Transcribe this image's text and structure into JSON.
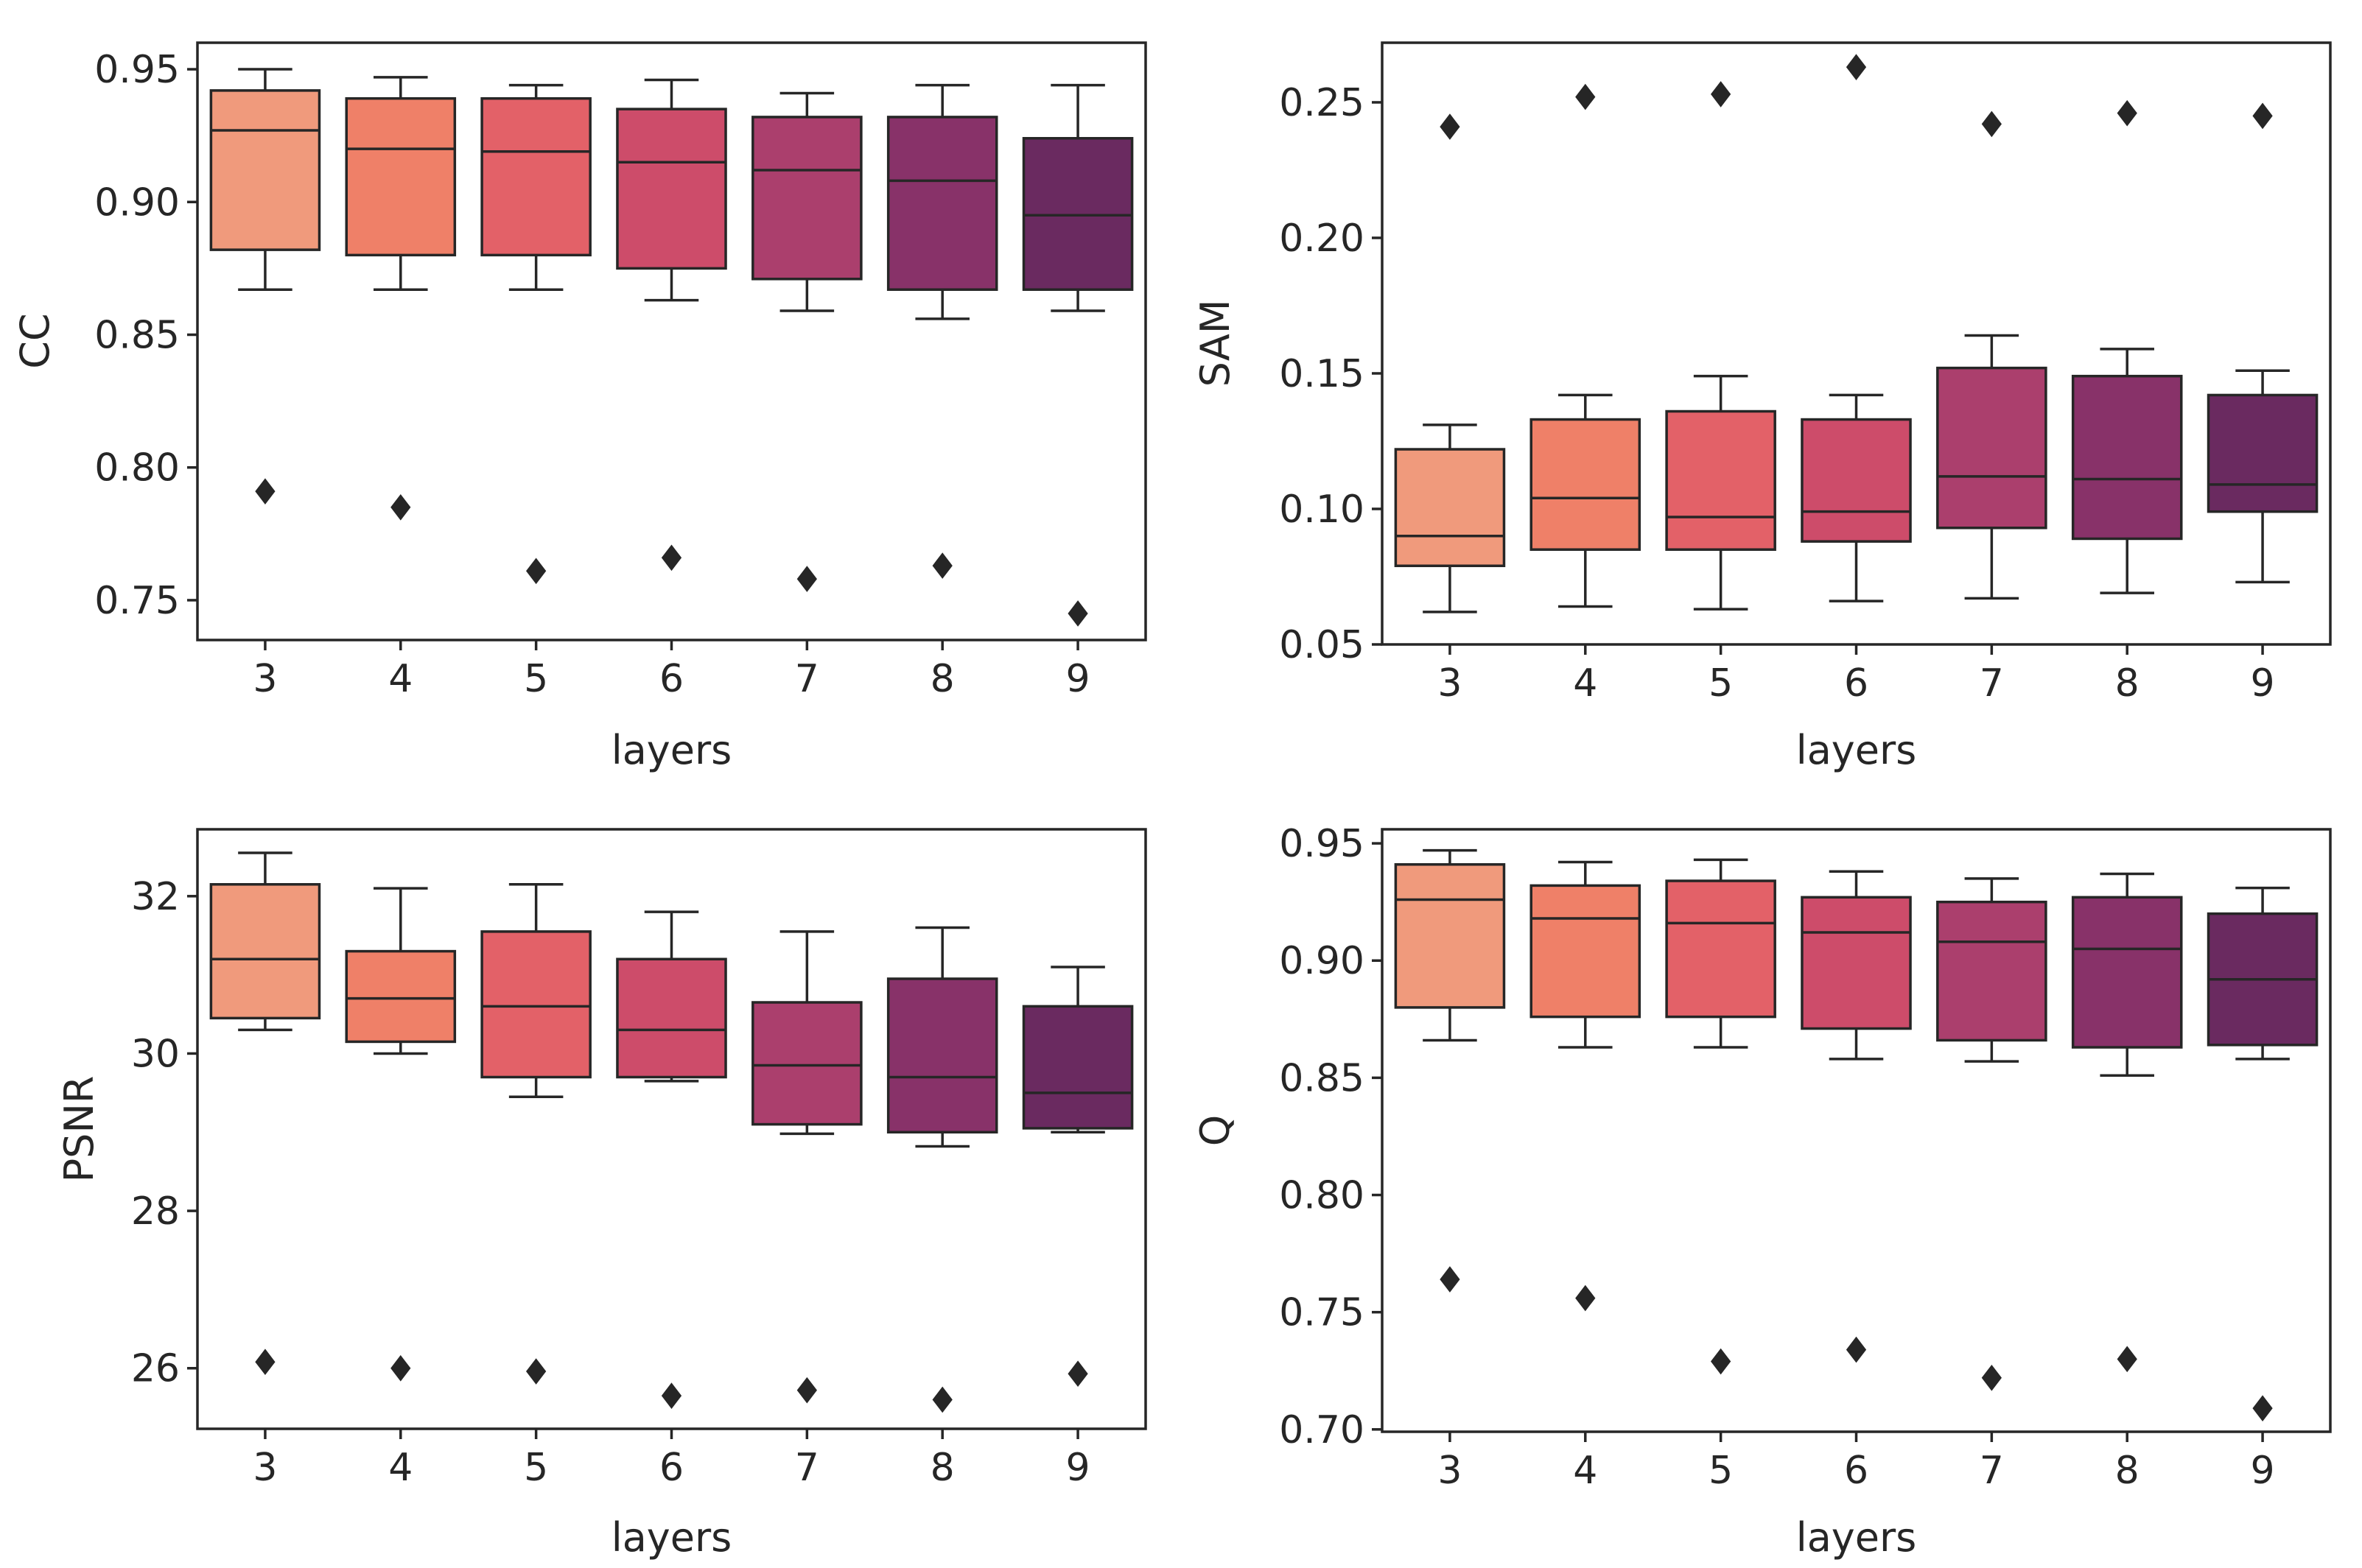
{
  "figure": {
    "colors": [
      "#f09a7c",
      "#ef8068",
      "#e36168",
      "#cd4c6a",
      "#ab3f6d",
      "#883269",
      "#6a2a60"
    ],
    "edge_color": "#262626"
  },
  "chart_data": [
    {
      "type": "box",
      "position": "top-left",
      "xlabel": "layers",
      "ylabel": "CC",
      "categories": [
        "3",
        "4",
        "5",
        "6",
        "7",
        "8",
        "9"
      ],
      "ylim": [
        0.735,
        0.96
      ],
      "yticks": [
        0.75,
        0.8,
        0.85,
        0.9,
        0.95
      ],
      "ytick_labels": [
        "0.75",
        "0.80",
        "0.85",
        "0.90",
        "0.95"
      ],
      "boxes": [
        {
          "whislo": 0.867,
          "q1": 0.882,
          "med": 0.927,
          "q3": 0.942,
          "whishi": 0.95,
          "fliers": [
            0.791
          ]
        },
        {
          "whislo": 0.867,
          "q1": 0.88,
          "med": 0.92,
          "q3": 0.939,
          "whishi": 0.947,
          "fliers": [
            0.785
          ]
        },
        {
          "whislo": 0.867,
          "q1": 0.88,
          "med": 0.919,
          "q3": 0.939,
          "whishi": 0.944,
          "fliers": [
            0.761
          ]
        },
        {
          "whislo": 0.863,
          "q1": 0.875,
          "med": 0.915,
          "q3": 0.935,
          "whishi": 0.946,
          "fliers": [
            0.766
          ]
        },
        {
          "whislo": 0.859,
          "q1": 0.871,
          "med": 0.912,
          "q3": 0.932,
          "whishi": 0.941,
          "fliers": [
            0.758
          ]
        },
        {
          "whislo": 0.856,
          "q1": 0.867,
          "med": 0.908,
          "q3": 0.932,
          "whishi": 0.944,
          "fliers": [
            0.763
          ]
        },
        {
          "whislo": 0.859,
          "q1": 0.867,
          "med": 0.895,
          "q3": 0.924,
          "whishi": 0.944,
          "fliers": [
            0.745
          ]
        }
      ]
    },
    {
      "type": "box",
      "position": "top-right",
      "xlabel": "layers",
      "ylabel": "SAM",
      "categories": [
        "3",
        "4",
        "5",
        "6",
        "7",
        "8",
        "9"
      ],
      "ylim": [
        0.05,
        0.272
      ],
      "yticks": [
        0.05,
        0.1,
        0.15,
        0.2,
        0.25
      ],
      "ytick_labels": [
        "0.05",
        "0.10",
        "0.15",
        "0.20",
        "0.25"
      ],
      "boxes": [
        {
          "whislo": 0.062,
          "q1": 0.079,
          "med": 0.09,
          "q3": 0.122,
          "whishi": 0.131,
          "fliers": [
            0.241
          ]
        },
        {
          "whislo": 0.064,
          "q1": 0.085,
          "med": 0.104,
          "q3": 0.133,
          "whishi": 0.142,
          "fliers": [
            0.252
          ]
        },
        {
          "whislo": 0.063,
          "q1": 0.085,
          "med": 0.097,
          "q3": 0.136,
          "whishi": 0.149,
          "fliers": [
            0.253
          ]
        },
        {
          "whislo": 0.066,
          "q1": 0.088,
          "med": 0.099,
          "q3": 0.133,
          "whishi": 0.142,
          "fliers": [
            0.263
          ]
        },
        {
          "whislo": 0.067,
          "q1": 0.093,
          "med": 0.112,
          "q3": 0.152,
          "whishi": 0.164,
          "fliers": [
            0.242
          ]
        },
        {
          "whislo": 0.069,
          "q1": 0.089,
          "med": 0.111,
          "q3": 0.149,
          "whishi": 0.159,
          "fliers": [
            0.246
          ]
        },
        {
          "whislo": 0.073,
          "q1": 0.099,
          "med": 0.109,
          "q3": 0.142,
          "whishi": 0.151,
          "fliers": [
            0.245
          ]
        }
      ]
    },
    {
      "type": "box",
      "position": "bottom-left",
      "xlabel": "layers",
      "ylabel": "PSNR",
      "categories": [
        "3",
        "4",
        "5",
        "6",
        "7",
        "8",
        "9"
      ],
      "ylim": [
        25.23,
        32.85
      ],
      "yticks": [
        26,
        28,
        30,
        32
      ],
      "ytick_labels": [
        "26",
        "28",
        "30",
        "32"
      ],
      "boxes": [
        {
          "whislo": 30.3,
          "q1": 30.45,
          "med": 31.2,
          "q3": 32.15,
          "whishi": 32.55,
          "fliers": [
            26.08
          ]
        },
        {
          "whislo": 30.0,
          "q1": 30.15,
          "med": 30.7,
          "q3": 31.3,
          "whishi": 32.1,
          "fliers": [
            26.0
          ]
        },
        {
          "whislo": 29.45,
          "q1": 29.7,
          "med": 30.6,
          "q3": 31.55,
          "whishi": 32.15,
          "fliers": [
            25.96
          ]
        },
        {
          "whislo": 29.65,
          "q1": 29.7,
          "med": 30.3,
          "q3": 31.2,
          "whishi": 31.8,
          "fliers": [
            25.65
          ]
        },
        {
          "whislo": 28.98,
          "q1": 29.1,
          "med": 29.85,
          "q3": 30.65,
          "whishi": 31.55,
          "fliers": [
            25.72
          ]
        },
        {
          "whislo": 28.82,
          "q1": 29.0,
          "med": 29.7,
          "q3": 30.95,
          "whishi": 31.6,
          "fliers": [
            25.6
          ]
        },
        {
          "whislo": 29.0,
          "q1": 29.05,
          "med": 29.5,
          "q3": 30.6,
          "whishi": 31.1,
          "fliers": [
            25.93
          ]
        }
      ]
    },
    {
      "type": "box",
      "position": "bottom-right",
      "xlabel": "layers",
      "ylabel": "Q",
      "categories": [
        "3",
        "4",
        "5",
        "6",
        "7",
        "8",
        "9"
      ],
      "ylim": [
        0.699,
        0.956
      ],
      "yticks": [
        0.7,
        0.75,
        0.8,
        0.85,
        0.9,
        0.95
      ],
      "ytick_labels": [
        "0.70",
        "0.75",
        "0.80",
        "0.85",
        "0.90",
        "0.95"
      ],
      "boxes": [
        {
          "whislo": 0.866,
          "q1": 0.88,
          "med": 0.926,
          "q3": 0.941,
          "whishi": 0.947,
          "fliers": [
            0.764
          ]
        },
        {
          "whislo": 0.863,
          "q1": 0.876,
          "med": 0.918,
          "q3": 0.932,
          "whishi": 0.942,
          "fliers": [
            0.756
          ]
        },
        {
          "whislo": 0.863,
          "q1": 0.876,
          "med": 0.916,
          "q3": 0.934,
          "whishi": 0.943,
          "fliers": [
            0.729
          ]
        },
        {
          "whislo": 0.858,
          "q1": 0.871,
          "med": 0.912,
          "q3": 0.927,
          "whishi": 0.938,
          "fliers": [
            0.734
          ]
        },
        {
          "whislo": 0.857,
          "q1": 0.866,
          "med": 0.908,
          "q3": 0.925,
          "whishi": 0.935,
          "fliers": [
            0.722
          ]
        },
        {
          "whislo": 0.851,
          "q1": 0.863,
          "med": 0.905,
          "q3": 0.927,
          "whishi": 0.937,
          "fliers": [
            0.73
          ]
        },
        {
          "whislo": 0.858,
          "q1": 0.864,
          "med": 0.892,
          "q3": 0.92,
          "whishi": 0.931,
          "fliers": [
            0.709
          ]
        }
      ]
    }
  ]
}
